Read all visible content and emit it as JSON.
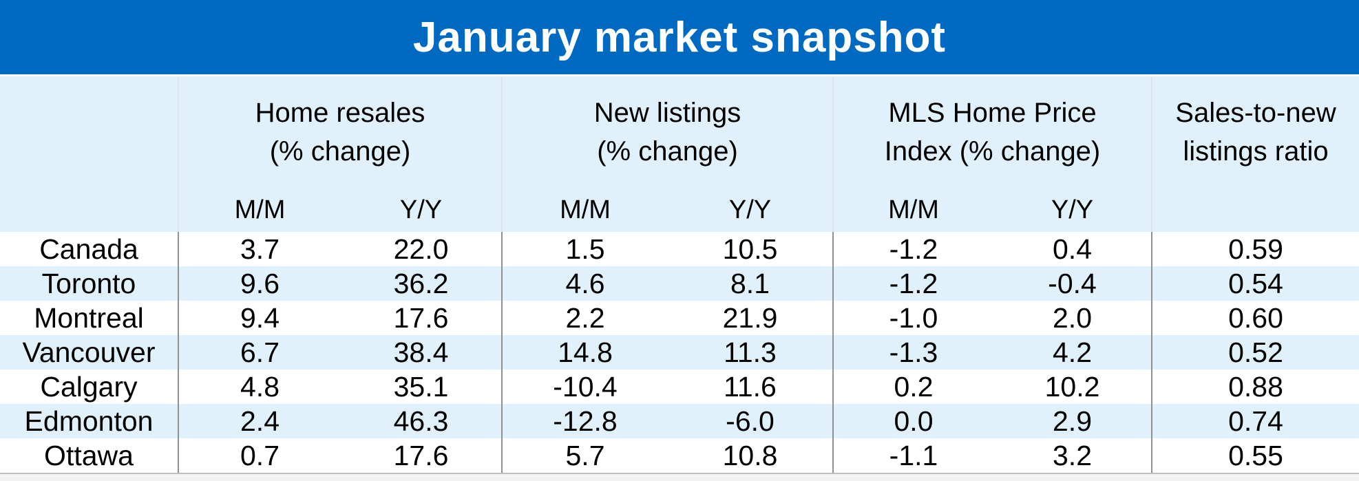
{
  "title": "January market snapshot",
  "header": {
    "groups": [
      {
        "line1": "Home resales",
        "line2": "(% change)"
      },
      {
        "line1": "New listings",
        "line2": "(% change)"
      },
      {
        "line1": "MLS Home Price",
        "line2": "Index (% change)"
      },
      {
        "line1": "Sales-to-new",
        "line2": "listings ratio"
      }
    ],
    "subheaders": [
      "M/M",
      "Y/Y",
      "M/M",
      "Y/Y",
      "M/M",
      "Y/Y"
    ]
  },
  "rows": [
    {
      "city": "Canada",
      "cells": [
        "3.7",
        "22.0",
        "1.5",
        "10.5",
        "-1.2",
        "0.4",
        "0.59"
      ]
    },
    {
      "city": "Toronto",
      "cells": [
        "9.6",
        "36.2",
        "4.6",
        "8.1",
        "-1.2",
        "-0.4",
        "0.54"
      ]
    },
    {
      "city": "Montreal",
      "cells": [
        "9.4",
        "17.6",
        "2.2",
        "21.9",
        "-1.0",
        "2.0",
        "0.60"
      ]
    },
    {
      "city": "Vancouver",
      "cells": [
        "6.7",
        "38.4",
        "14.8",
        "11.3",
        "-1.3",
        "4.2",
        "0.52"
      ]
    },
    {
      "city": "Calgary",
      "cells": [
        "4.8",
        "35.1",
        "-10.4",
        "11.6",
        "0.2",
        "10.2",
        "0.88"
      ]
    },
    {
      "city": "Edmonton",
      "cells": [
        "2.4",
        "46.3",
        "-12.8",
        "-6.0",
        "0.0",
        "2.9",
        "0.74"
      ]
    },
    {
      "city": "Ottawa",
      "cells": [
        "0.7",
        "17.6",
        "5.7",
        "10.8",
        "-1.1",
        "3.2",
        "0.55"
      ]
    }
  ],
  "colors": {
    "title_bar": "#006AC3",
    "title_text": "#FFFFFF",
    "header_bg": "#E1F1FC",
    "row_alt_bg": "#E1F1FC",
    "row_bg": "#FFFFFF",
    "text": "#000000",
    "body_separator": "#909090",
    "header_separator": "#DCE4EA",
    "bottom_line": "#BFBFBF",
    "bottom_strip": "#F2F2F2"
  },
  "chart_data": {
    "type": "table",
    "title": "January market snapshot",
    "column_groups": [
      "Home resales (% change)",
      "New listings (% change)",
      "MLS Home Price Index (% change)",
      "Sales-to-new listings ratio"
    ],
    "columns": [
      "Home resales M/M",
      "Home resales Y/Y",
      "New listings M/M",
      "New listings Y/Y",
      "MLS Home Price Index M/M",
      "MLS Home Price Index Y/Y",
      "Sales-to-new listings ratio"
    ],
    "row_labels": [
      "Canada",
      "Toronto",
      "Montreal",
      "Vancouver",
      "Calgary",
      "Edmonton",
      "Ottawa"
    ],
    "rows": [
      [
        3.7,
        22.0,
        1.5,
        10.5,
        -1.2,
        0.4,
        0.59
      ],
      [
        9.6,
        36.2,
        4.6,
        8.1,
        -1.2,
        -0.4,
        0.54
      ],
      [
        9.4,
        17.6,
        2.2,
        21.9,
        -1.0,
        2.0,
        0.6
      ],
      [
        6.7,
        38.4,
        14.8,
        11.3,
        -1.3,
        4.2,
        0.52
      ],
      [
        4.8,
        35.1,
        -10.4,
        11.6,
        0.2,
        10.2,
        0.88
      ],
      [
        2.4,
        46.3,
        -12.8,
        -6.0,
        0.0,
        2.9,
        0.74
      ],
      [
        0.7,
        17.6,
        5.7,
        10.8,
        -1.1,
        3.2,
        0.55
      ]
    ],
    "layout_hints": {
      "alternating_row_colors": true,
      "grid": "vertical separators between column groups only",
      "header_position": "top"
    }
  }
}
